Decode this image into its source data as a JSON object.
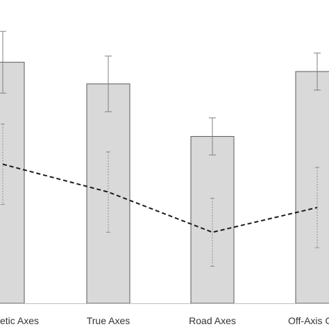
{
  "chart_data": {
    "type": "bar",
    "categories": [
      "Synthetic Axes",
      "True Axes",
      "Road Axes",
      "Off-Axis C"
    ],
    "category_labels_visible": [
      "etic Axes",
      "True Axes",
      "Road Axes",
      "Off-Axis C"
    ],
    "series": [
      {
        "kind": "bar",
        "values": [
          0.78,
          0.71,
          0.54,
          0.75
        ],
        "error": [
          0.1,
          0.09,
          0.06,
          0.06
        ],
        "error_style": "solid"
      },
      {
        "kind": "line",
        "line_style": "dashed",
        "values": [
          0.45,
          0.36,
          0.23,
          0.31
        ],
        "error": [
          0.13,
          0.13,
          0.11,
          0.13
        ],
        "error_style": "dotted"
      }
    ],
    "ylim": [
      0,
      0.95
    ],
    "grid": false,
    "legend": "none",
    "colors": {
      "bar_fill": "#d9d9d9",
      "bar_stroke": "#595959",
      "line": "#1a1a1a",
      "axis": "#bfbfbf",
      "label": "#333333"
    }
  }
}
